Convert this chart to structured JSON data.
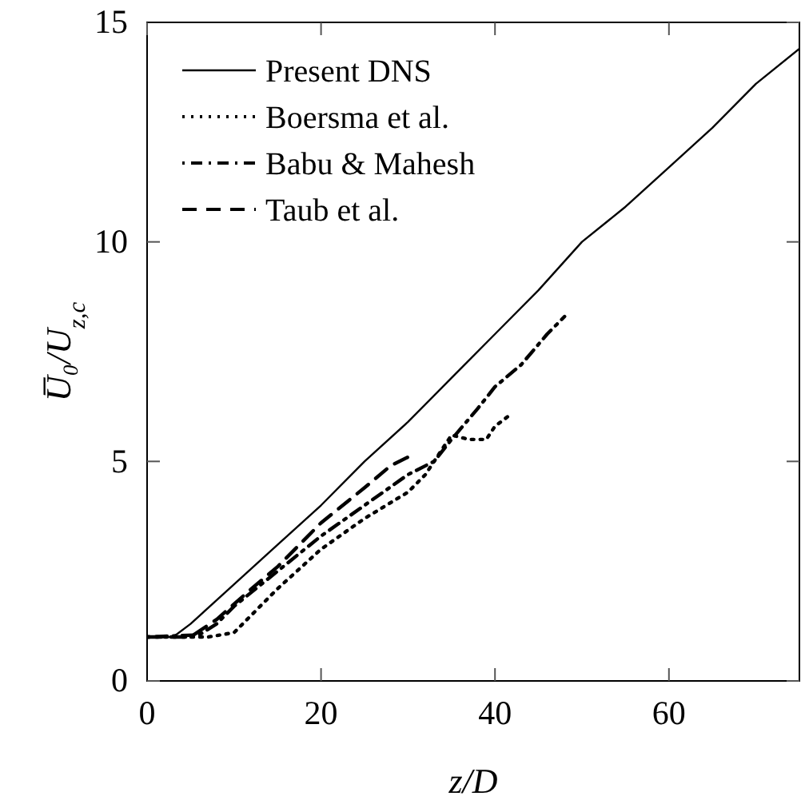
{
  "chart_data": {
    "type": "line",
    "xlabel": "z/D",
    "ylabel": "U̅₀/U$_{z,c}$",
    "xlim": [
      0,
      75
    ],
    "ylim": [
      0,
      15
    ],
    "xticks": [
      0,
      20,
      40,
      60
    ],
    "yticks": [
      0,
      5,
      10,
      15
    ],
    "legend": "top left",
    "grid": false,
    "series": [
      {
        "name": "Present DNS",
        "color": "#000000",
        "line_style": "solid",
        "x": [
          0,
          3,
          5,
          10,
          15,
          20,
          25,
          30,
          35,
          40,
          45,
          50,
          55,
          60,
          65,
          70,
          75
        ],
        "values": [
          1,
          1,
          1.3,
          2.2,
          3.1,
          4.0,
          5.0,
          5.9,
          6.9,
          7.9,
          8.9,
          10.0,
          10.8,
          11.7,
          12.6,
          13.6,
          14.4
        ]
      },
      {
        "name": "Boersma et al.",
        "color": "#000000",
        "line_style": "dotted",
        "x": [
          0,
          7,
          10,
          12,
          15,
          20,
          25,
          30,
          32,
          34,
          35,
          37,
          39,
          40,
          42
        ],
        "values": [
          1,
          1,
          1.1,
          1.5,
          2.1,
          3.0,
          3.7,
          4.3,
          4.7,
          5.3,
          5.6,
          5.5,
          5.5,
          5.8,
          6.1
        ]
      },
      {
        "name": "Babu & Mahesh",
        "color": "#000000",
        "line_style": "dashdot",
        "x": [
          0,
          6,
          8,
          10,
          15,
          20,
          25,
          30,
          33,
          35,
          38,
          40,
          43,
          46,
          48
        ],
        "values": [
          1,
          1.05,
          1.3,
          1.7,
          2.5,
          3.3,
          4.0,
          4.7,
          5.0,
          5.5,
          6.2,
          6.7,
          7.2,
          7.9,
          8.3
        ]
      },
      {
        "name": "Taub et al.",
        "color": "#000000",
        "line_style": "dashed",
        "x": [
          0,
          5,
          8,
          12,
          15,
          20,
          25,
          28,
          30
        ],
        "values": [
          1,
          1,
          1.4,
          2.1,
          2.6,
          3.6,
          4.4,
          4.9,
          5.1
        ]
      }
    ]
  }
}
